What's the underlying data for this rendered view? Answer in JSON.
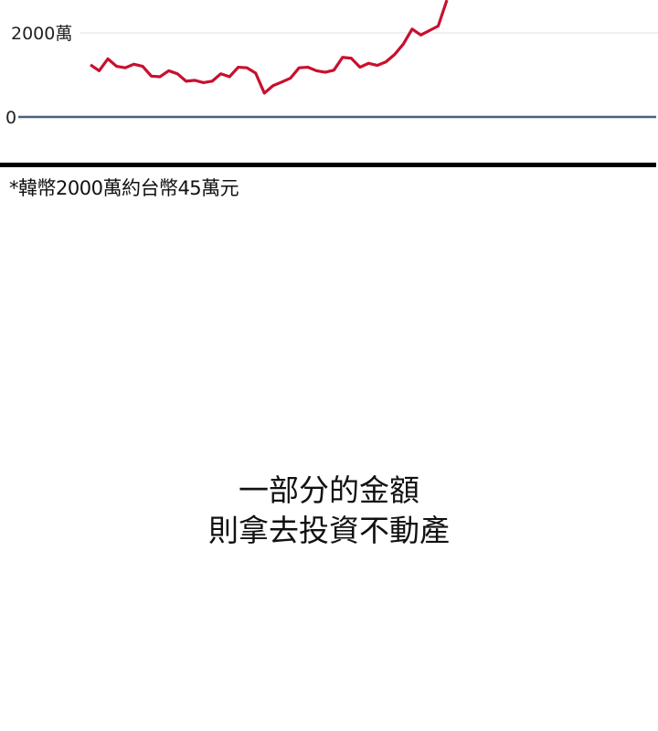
{
  "chart_data": {
    "type": "line",
    "title": "",
    "xlabel": "",
    "ylabel": "",
    "ylim": [
      0,
      2780
    ],
    "yticks": [
      {
        "value": 0,
        "label": "0"
      },
      {
        "value": 2000,
        "label": "2000萬"
      }
    ],
    "grid": true,
    "line_color": "#c8102e",
    "axis_color": "#4a6080",
    "values": [
      1241,
      1099,
      1383,
      1206,
      1170,
      1255,
      1206,
      972,
      957,
      1099,
      1028,
      851,
      872,
      816,
      851,
      1028,
      957,
      1184,
      1170,
      1043,
      567,
      745,
      830,
      922,
      1170,
      1184,
      1099,
      1064,
      1113,
      1418,
      1397,
      1184,
      1277,
      1227,
      1312,
      1489,
      1738,
      2092,
      1950,
      2057,
      2163,
      2780
    ]
  },
  "footnote": "*韓幣2000萬約台幣45萬元",
  "caption": {
    "line1": "一部分的金額",
    "line2": "則拿去投資不動產"
  }
}
